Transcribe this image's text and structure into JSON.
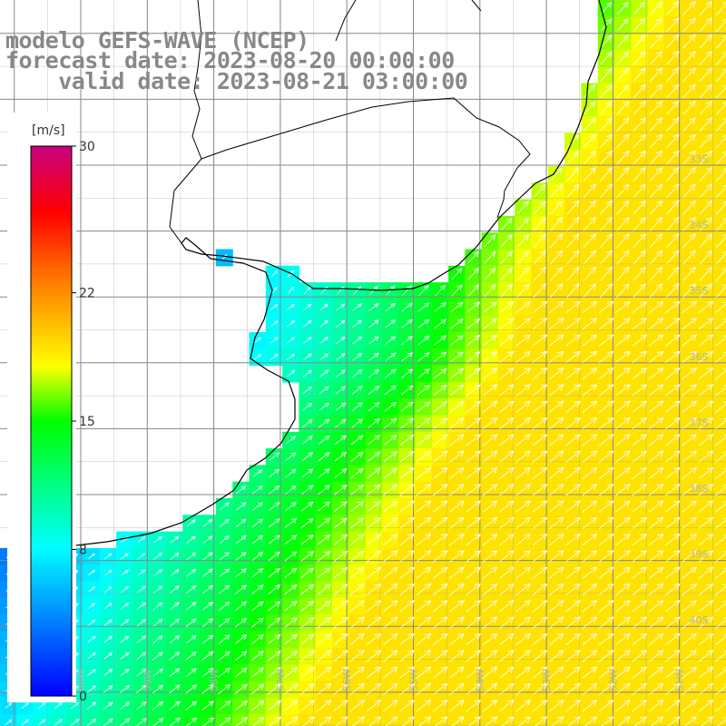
{
  "title": {
    "line1": "modelo GEFS-WAVE (NCEP)",
    "line2": "forecast date: 2023-08-20 00:00:00",
    "line3": "    valid date: 2023-08-21 03:00:00"
  },
  "colorbar": {
    "unit_label": "[m/s]",
    "min": 0,
    "max": 30,
    "ticks": [
      {
        "value": 30,
        "label": "30"
      },
      {
        "value": 22,
        "label": "22"
      },
      {
        "value": 15,
        "label": "15"
      },
      {
        "value": 8,
        "label": "8"
      },
      {
        "value": 0,
        "label": "0"
      }
    ]
  },
  "axes": {
    "lat_labels": [
      "33S",
      "34S",
      "35S",
      "36S",
      "37S",
      "38S",
      "39S",
      "40S"
    ],
    "lon_labels": [
      "60W",
      "59W",
      "58W",
      "57W",
      "56W",
      "55W",
      "54W",
      "53W",
      "52W",
      "51W"
    ]
  },
  "field": {
    "variable": "wind speed",
    "units": "m/s",
    "lon_range": [
      -61,
      -50
    ],
    "lat_range": [
      -41.3,
      -31.5
    ]
  }
}
